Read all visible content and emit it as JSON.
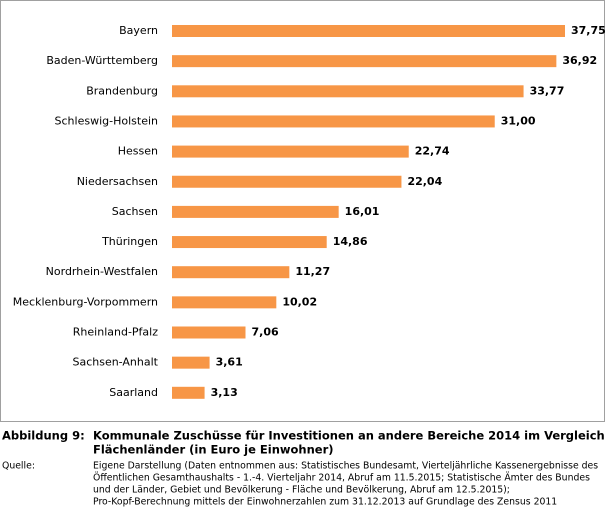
{
  "chart_data": {
    "type": "bar",
    "orientation": "horizontal",
    "categories": [
      "Bayern",
      "Baden-Württemberg",
      "Brandenburg",
      "Schleswig-Holstein",
      "Hessen",
      "Niedersachsen",
      "Sachsen",
      "Thüringen",
      "Nordrhein-Westfalen",
      "Mecklenburg-Vorpommern",
      "Rheinland-Pfalz",
      "Sachsen-Anhalt",
      "Saarland"
    ],
    "values": [
      37.75,
      36.92,
      33.77,
      31.0,
      22.74,
      22.04,
      16.01,
      14.86,
      11.27,
      10.02,
      7.06,
      3.61,
      3.13
    ],
    "value_labels": [
      "37,75",
      "36,92",
      "33,77",
      "31,00",
      "22,74",
      "22,04",
      "16,01",
      "14,86",
      "11,27",
      "10,02",
      "7,06",
      "3,61",
      "3,13"
    ],
    "color": "#f79646"
  },
  "caption": {
    "label": "Abbildung 9:",
    "lines": [
      "Kommunale Zuschüsse für Investitionen an andere Bereiche 2014 im Vergleich der",
      "Flächenländer (in Euro je Einwohner)"
    ]
  },
  "source": {
    "label": "Quelle:",
    "lines": [
      "Eigene Darstellung (Daten entnommen aus: Statistisches Bundesamt, Vierteljährliche Kassenergebnisse des",
      "Öffentlichen Gesamthaushalts - 1.-4. Vierteljahr 2014, Abruf am 11.5.2015;  Statistische Ämter des Bundes",
      "und der Länder, Gebiet und Bevölkerung - Fläche und Bevölkerung, Abruf am 12.5.2015);",
      "Pro-Kopf-Berechnung mittels der Einwohnerzahlen zum 31.12.2013  auf Grundlage des Zensus 2011"
    ]
  }
}
